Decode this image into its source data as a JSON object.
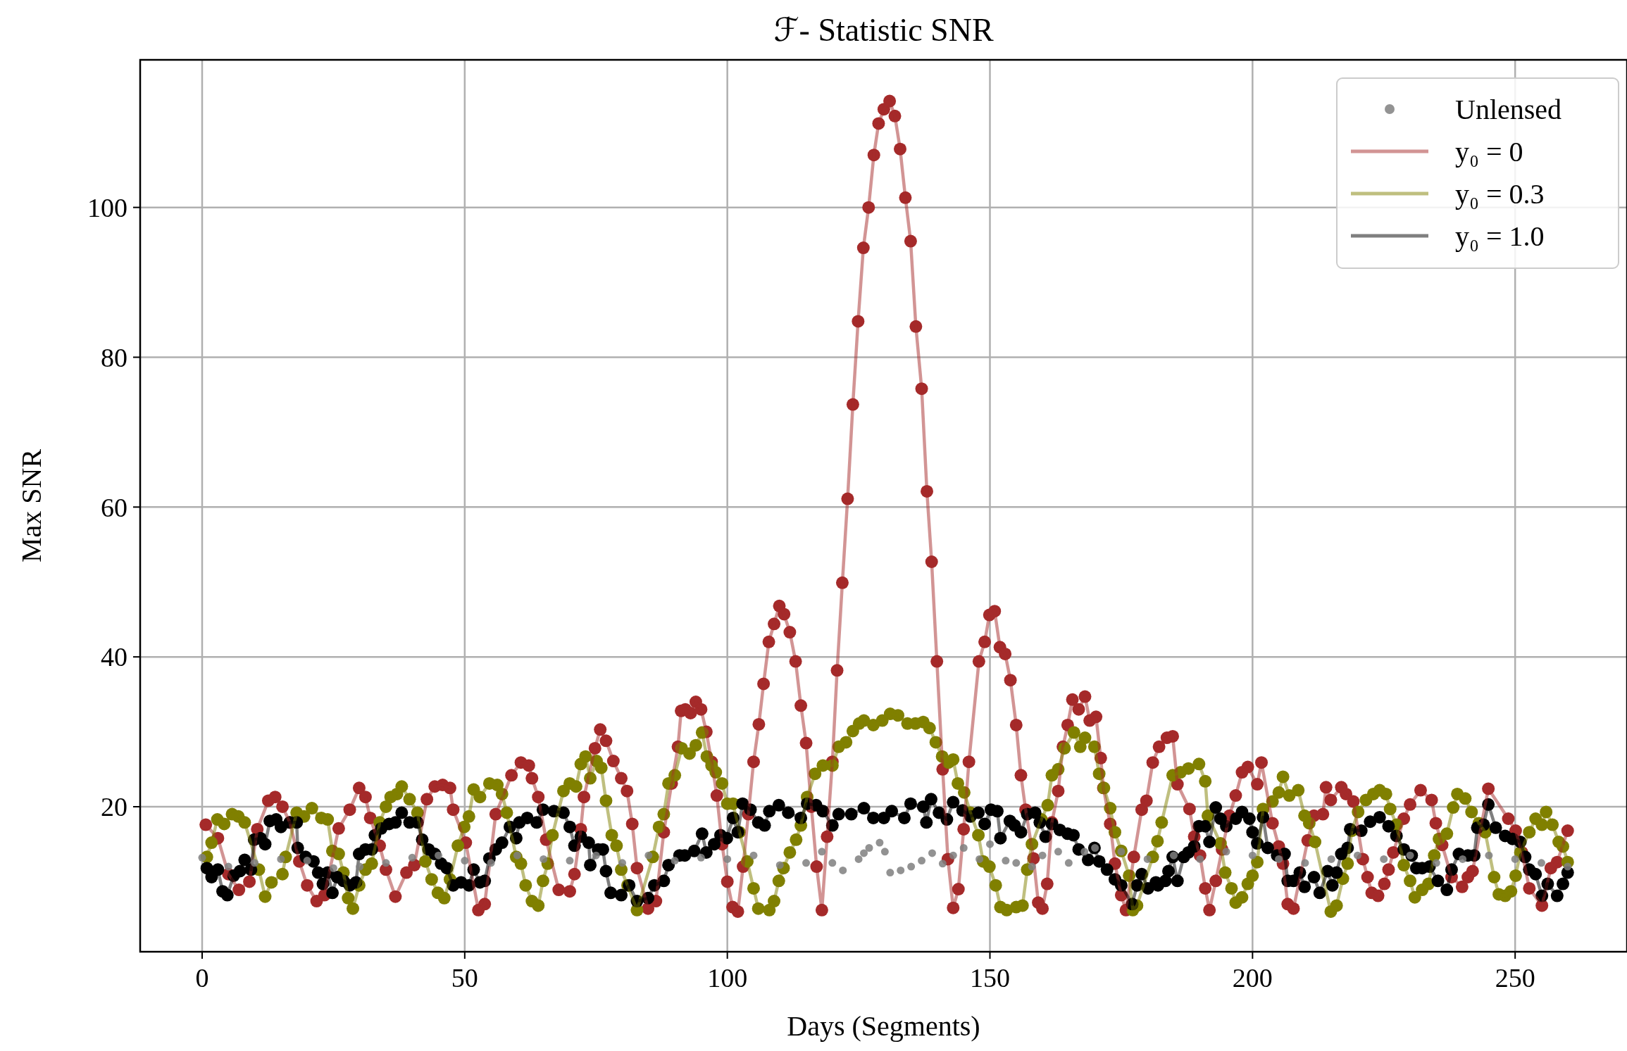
{
  "chart_data": {
    "type": "line",
    "title": "ℱ- Statistic SNR",
    "xlabel": "Days (Segments)",
    "ylabel": "Max SNR",
    "xlim": [
      -11.8,
      271.3
    ],
    "ylim": [
      0.64,
      119.7
    ],
    "xticks": [
      0,
      50,
      100,
      150,
      200,
      250
    ],
    "yticks": [
      20,
      40,
      60,
      80,
      100
    ],
    "grid": true,
    "legend": "top right",
    "marker": "circle",
    "series": [
      {
        "name": "Unlensed",
        "type": "scatter",
        "color": "#808080",
        "x": [
          0,
          5,
          10,
          15,
          20,
          25,
          30,
          35,
          40,
          45,
          50,
          55,
          60,
          65,
          70,
          75,
          80,
          85,
          90,
          95,
          100,
          105,
          110,
          115,
          118,
          120,
          122,
          125,
          126,
          127,
          129,
          130,
          131,
          133,
          135,
          137,
          139,
          141,
          143,
          145,
          148,
          150,
          153,
          155,
          158,
          160,
          163,
          165,
          168,
          170,
          175,
          180,
          185,
          190,
          195,
          200,
          205,
          210,
          215,
          220,
          225,
          230,
          235,
          240,
          245,
          250,
          255,
          260
        ],
        "values": [
          13.2,
          12,
          12.5,
          13,
          12.8,
          11.8,
          12,
          12.5,
          13.2,
          13.5,
          12.8,
          12.5,
          13.5,
          13,
          12.8,
          13.5,
          12.5,
          13.5,
          12.8,
          13.2,
          13,
          13.5,
          12.2,
          12.5,
          14,
          12.5,
          11.5,
          13,
          13.8,
          14.5,
          15.2,
          14,
          11.2,
          11.5,
          12,
          12.8,
          13.8,
          12.4,
          13.5,
          14.5,
          13,
          15,
          12.8,
          12.5,
          12,
          13.5,
          14,
          12.5,
          14,
          14.5,
          14,
          13,
          13.5,
          13,
          14,
          13.5,
          13,
          12.5,
          13,
          13.5,
          13,
          13.5,
          12.5,
          13,
          13.5,
          13,
          12.5,
          12
        ]
      },
      {
        "name": "y₀ = 0",
        "type": "line",
        "color": "#a52a2a",
        "x": [
          0.7,
          3,
          5,
          7,
          9,
          10.5,
          12.6,
          13.9,
          15.3,
          16.7,
          18.5,
          20,
          21.8,
          23.3,
          26,
          28.1,
          29.9,
          31.1,
          32,
          33.8,
          35,
          36.8,
          38.9,
          40.4,
          42.8,
          44.3,
          45.8,
          47.2,
          47.8,
          50.2,
          52.6,
          53.8,
          55.9,
          58.9,
          60.7,
          62.2,
          62.8,
          64,
          65.5,
          67.9,
          70,
          70.9,
          72.1,
          72.7,
          74.8,
          75.8,
          76.9,
          78.3,
          79.8,
          80.9,
          81.9,
          82.8,
          84.9,
          86.4,
          87.9,
          89.4,
          90.6,
          91.2,
          92,
          93,
          94,
          95,
          96,
          97,
          98,
          99,
          100,
          101,
          102,
          103,
          104,
          105,
          106,
          106.9,
          107.9,
          108.9,
          109.9,
          110.8,
          111.9,
          113,
          114,
          115,
          116,
          117,
          118,
          119,
          120,
          120.9,
          121.9,
          122.9,
          123.9,
          124.9,
          125.9,
          126.9,
          127.9,
          128.8,
          129.8,
          130.9,
          131.9,
          132.9,
          133.9,
          134.9,
          135.9,
          137,
          138,
          138.9,
          139.9,
          141,
          142,
          143,
          144,
          145,
          146,
          147.9,
          149,
          149.9,
          150.9,
          151.9,
          152.9,
          153.9,
          155,
          155.9,
          156.8,
          158.3,
          159.2,
          160,
          160.9,
          161.8,
          163,
          163.9,
          164.8,
          165.7,
          166.9,
          168.1,
          169,
          170.2,
          171.1,
          171.6,
          172.9,
          173.8,
          175,
          175.9,
          177.4,
          178.9,
          179.8,
          181,
          182.2,
          183.7,
          184.8,
          185.7,
          188,
          188.9,
          190,
          191,
          191.8,
          193,
          194.2,
          195.6,
          196.8,
          198,
          199.1,
          200.9,
          201.7,
          203.8,
          205,
          205.8,
          206.7,
          207.8,
          210.5,
          211.7,
          213.4,
          214,
          214.9,
          216.9,
          217.8,
          219.2,
          221,
          221.9,
          222.7,
          223.9,
          225.1,
          225.9,
          226.8,
          228.8,
          230,
          232,
          234.1,
          234.9,
          236.1,
          237.9,
          239.9,
          241,
          241.9,
          244.9,
          248.7,
          250.1,
          251.3,
          252.7,
          255.1,
          256.8,
          258,
          260
        ],
        "values": [
          17.6,
          15.8,
          11,
          8.9,
          10,
          17,
          20.8,
          21.3,
          20,
          17.9,
          12.7,
          9.5,
          7.4,
          8.2,
          17.1,
          19.6,
          22.5,
          21.3,
          18.5,
          14.8,
          11.6,
          8,
          11.2,
          12.2,
          21,
          22.7,
          22.9,
          22.5,
          19.6,
          15.2,
          6.2,
          7,
          19,
          24.2,
          25.9,
          25.5,
          23.8,
          21.3,
          15.6,
          8.9,
          8.7,
          11,
          17,
          21.3,
          27.8,
          30.3,
          28.8,
          26.1,
          23.8,
          22.1,
          17.7,
          11.8,
          6.4,
          7.4,
          16.6,
          23.1,
          28,
          32.8,
          33,
          32.5,
          34,
          33,
          30,
          26,
          21.5,
          15,
          10,
          6.6,
          6,
          12,
          19,
          26,
          31,
          36.4,
          42,
          44.4,
          46.8,
          45.7,
          43.3,
          39.4,
          33.5,
          28.5,
          20,
          12,
          6.2,
          16,
          26,
          38.2,
          49.9,
          61.1,
          73.7,
          84.8,
          94.6,
          100,
          107,
          111.2,
          113.1,
          114.2,
          112.2,
          107.8,
          101.3,
          95.5,
          84.1,
          75.8,
          62.1,
          52.7,
          39.4,
          25,
          13,
          6.5,
          9,
          17,
          26,
          39.4,
          42,
          45.6,
          46.1,
          41.3,
          40.4,
          36.9,
          30.9,
          24.2,
          19.6,
          13.1,
          7.2,
          6.4,
          9.7,
          17.9,
          22.1,
          28,
          30.9,
          34.3,
          33,
          34.7,
          31.5,
          32,
          26.5,
          22.5,
          17.7,
          12.4,
          8.2,
          6.2,
          13.3,
          19.6,
          20.8,
          25.9,
          28,
          29.2,
          29.4,
          23,
          19.7,
          16,
          13.5,
          9.1,
          6.2,
          10.1,
          14.3,
          18.8,
          21.5,
          24.6,
          25.3,
          23,
          25.9,
          17.8,
          14.7,
          12.4,
          7,
          6.4,
          15.5,
          18.8,
          19,
          22.6,
          20.9,
          22.6,
          21.7,
          20.7,
          13,
          10.6,
          8.5,
          8.1,
          9.7,
          11.6,
          13.9,
          18.4,
          20.3,
          22.2,
          20.9,
          17.8,
          14.9,
          10.6,
          9.3,
          10.6,
          11.4,
          22.4,
          18.4,
          16.8,
          13.9,
          9.1,
          6.8,
          11.8,
          12.6,
          16.8
        ]
      },
      {
        "name": "y₀ = 0.3",
        "type": "line",
        "color": "#808000",
        "x": [
          0.9,
          1.8,
          2.9,
          4.2,
          5.7,
          6.9,
          8.1,
          10.8,
          12,
          13.2,
          15.3,
          15.9,
          18,
          19.4,
          20.9,
          22.7,
          23.9,
          24.8,
          26,
          26.9,
          27.8,
          28.7,
          29.9,
          31.1,
          32.3,
          33.8,
          35,
          35.9,
          37.1,
          38,
          39.5,
          41,
          42.5,
          43.7,
          44.9,
          46.1,
          47.2,
          48.7,
          49.9,
          50.8,
          51.7,
          52.9,
          54.7,
          56.2,
          57.1,
          58,
          59.8,
          60.7,
          61.6,
          62.8,
          64,
          64.9,
          65.8,
          66.7,
          68.8,
          70,
          71.2,
          72.1,
          73,
          73.9,
          75.1,
          76,
          76.9,
          78,
          78.9,
          79.8,
          81,
          82.8,
          85.8,
          87,
          87.9,
          88.8,
          90,
          91.3,
          92.8,
          94,
          95.2,
          96.1,
          97,
          97.8,
          99,
          100,
          101.1,
          102.3,
          103.8,
          105,
          105.9,
          108,
          108.9,
          109.8,
          110.7,
          111.9,
          113.1,
          114,
          115.2,
          116.7,
          118.2,
          120,
          121.2,
          122.6,
          123.9,
          125.1,
          126,
          127.8,
          129.5,
          131,
          132.5,
          134.3,
          135.8,
          137.3,
          138.5,
          139.7,
          140.9,
          142.1,
          143,
          143.9,
          145.1,
          146.3,
          147.8,
          148.7,
          149.9,
          151.1,
          152,
          153.2,
          155,
          156.2,
          157.1,
          158,
          159.8,
          161,
          161.8,
          163,
          164.2,
          166,
          167.2,
          168.1,
          169.9,
          170.8,
          171.7,
          172.9,
          173.8,
          175,
          176.5,
          177.2,
          178,
          181,
          181.9,
          182.7,
          184.8,
          186.3,
          187.8,
          189.8,
          191,
          191.5,
          193.9,
          194.8,
          196,
          196.8,
          198,
          199.1,
          200,
          200.9,
          202,
          203.8,
          205,
          205.8,
          207,
          208.7,
          209.9,
          210.8,
          211.9,
          214.9,
          216,
          217.2,
          218.1,
          218.9,
          220.1,
          221.6,
          223,
          224.2,
          225.4,
          226.2,
          227.4,
          228.8,
          230,
          230.9,
          232.3,
          233.5,
          234.6,
          235.5,
          237,
          238.2,
          239,
          240.5,
          241.7,
          243.1,
          244.3,
          246,
          246.9,
          248.1,
          249.2,
          250.1,
          251,
          252.7,
          253.9,
          255.1,
          255.9,
          257.1,
          258.3,
          259.1,
          260
        ],
        "values": [
          13.3,
          15.2,
          18.3,
          17.7,
          19,
          18.7,
          17.9,
          11.6,
          8,
          9.9,
          11,
          13.3,
          19.2,
          18.7,
          19.8,
          18.5,
          18.3,
          14.1,
          13.7,
          11.2,
          7.8,
          6.4,
          9.5,
          11.6,
          12.4,
          17.9,
          20,
          21.3,
          21.7,
          22.7,
          21,
          19.2,
          12.7,
          10.3,
          8.5,
          7.8,
          10.3,
          14.8,
          17.3,
          18.7,
          22.3,
          21.3,
          23.1,
          22.9,
          21.7,
          19.2,
          13.3,
          12.4,
          9.5,
          7.4,
          6.8,
          10.1,
          12.4,
          16.2,
          22.1,
          23.1,
          22.7,
          25.7,
          26.7,
          23.8,
          26.1,
          25.2,
          20.8,
          16.2,
          14.8,
          11.6,
          9.5,
          6.2,
          13.3,
          17.3,
          19,
          23.1,
          24.2,
          27.8,
          27.1,
          28.2,
          29.9,
          26.7,
          25.5,
          24.6,
          23.1,
          20.4,
          20.4,
          16.6,
          12.7,
          9.1,
          6.4,
          6.2,
          7.4,
          10.1,
          11.8,
          13.9,
          15.6,
          17.5,
          21.3,
          24.4,
          25.5,
          25.5,
          28,
          28.6,
          30.1,
          31.1,
          31.5,
          30.9,
          31.5,
          32.4,
          32.2,
          31.1,
          31.1,
          31.3,
          30.5,
          28.6,
          26.7,
          25.9,
          26.3,
          23.1,
          21.9,
          19.2,
          16.2,
          12.7,
          12,
          9.5,
          6.6,
          6.2,
          6.6,
          6.8,
          11.6,
          15,
          18.3,
          20.2,
          24.2,
          25,
          27.8,
          29.9,
          28,
          29.2,
          28,
          24.4,
          22.5,
          19.8,
          16.6,
          14.1,
          10.8,
          6.2,
          6.8,
          13.3,
          15.4,
          17.9,
          24.2,
          24.6,
          25.1,
          25.7,
          23.4,
          18.8,
          15.1,
          11.2,
          9.1,
          7.2,
          7.9,
          9.7,
          10.8,
          12.6,
          19.7,
          20.7,
          21.9,
          24,
          21.5,
          22.2,
          18.8,
          17.8,
          15.3,
          6,
          6.8,
          10.4,
          12.4,
          16.8,
          19.3,
          20.9,
          21.7,
          22.2,
          21.7,
          19.7,
          17.6,
          12.2,
          10.1,
          7.9,
          8.9,
          9.7,
          13.5,
          15.7,
          16.4,
          19.9,
          21.7,
          21.1,
          19.3,
          17.8,
          16.6,
          10.6,
          8.3,
          8.1,
          8.7,
          10.8,
          13.9,
          16.6,
          18.4,
          17.6,
          19.3,
          17.6,
          15.3,
          14.7,
          12.6
        ]
      },
      {
        "name": "y₀ = 1.0",
        "type": "line",
        "color": "#000000",
        "x": [
          0.9,
          1.8,
          3,
          3.9,
          4.8,
          6,
          7.2,
          8.1,
          9.3,
          9.9,
          11.1,
          12,
          12.9,
          14.1,
          15,
          16.7,
          18,
          18.2,
          19.7,
          21.2,
          22.1,
          23,
          23.9,
          24.8,
          25.7,
          26.9,
          28.1,
          29.3,
          29.9,
          31.1,
          32.3,
          32.9,
          34.1,
          35.6,
          36.8,
          38,
          39.5,
          41,
          41.9,
          43.1,
          44.3,
          45.5,
          46.6,
          47.8,
          49.3,
          50.8,
          51.7,
          52.9,
          53.8,
          54.7,
          55.9,
          57.1,
          58.6,
          59.8,
          60.4,
          61.9,
          63.7,
          64.9,
          67,
          68.8,
          70,
          70.9,
          72.1,
          73.6,
          73.9,
          75.4,
          76.3,
          76.9,
          77.8,
          79.8,
          81.3,
          82.8,
          84.9,
          86.1,
          87.9,
          88.8,
          90.9,
          91.9,
          93.7,
          95.2,
          96,
          97.5,
          98.7,
          99.9,
          101.1,
          102,
          102.9,
          104.4,
          105.9,
          107.1,
          108,
          109.8,
          111.6,
          114,
          115.2,
          116.9,
          118.2,
          120,
          121.2,
          123.6,
          126,
          127.8,
          129.8,
          131.3,
          133.7,
          134.9,
          137.3,
          137.9,
          138.8,
          140.3,
          141.8,
          143,
          144.8,
          146.3,
          147.8,
          149,
          150.2,
          151.4,
          152,
          153.8,
          154.7,
          155.9,
          157.1,
          158.6,
          159.5,
          160.6,
          161.8,
          163.3,
          164.8,
          165.9,
          166.9,
          168.7,
          169.9,
          170.8,
          172.3,
          173.8,
          175,
          177.1,
          178,
          178.9,
          180.1,
          181.6,
          182,
          183.4,
          184,
          184.8,
          185.7,
          186.9,
          187.8,
          188.9,
          189.8,
          191,
          191.8,
          193,
          193.9,
          195,
          196.8,
          198,
          199.4,
          200,
          200.9,
          202,
          202.9,
          204.7,
          206.1,
          206.7,
          207.8,
          209,
          209.9,
          211.7,
          212.8,
          214.3,
          215.2,
          216,
          216.9,
          218.1,
          218.6,
          220.7,
          222.4,
          224.2,
          225.9,
          227.4,
          228.8,
          230.3,
          231.2,
          232.3,
          233.7,
          235.3,
          237,
          237.9,
          239.3,
          241,
          242.2,
          242.8,
          244,
          244.9,
          246.3,
          248.1,
          249.5,
          251,
          251.9,
          252.7,
          253.9,
          255.1,
          256.2,
          258,
          259.1,
          260
        ],
        "values": [
          11.8,
          10.6,
          11.6,
          8.7,
          8.2,
          10.8,
          11.4,
          12.9,
          11.6,
          15.6,
          15.8,
          15,
          18.1,
          18.3,
          17.3,
          17.9,
          17.9,
          14.5,
          13.3,
          12.7,
          11.2,
          9.7,
          11.2,
          8.5,
          10.6,
          10.1,
          9.5,
          9.9,
          13.7,
          14.3,
          14.3,
          16.2,
          17.1,
          17.7,
          17.9,
          19.2,
          17.9,
          17.9,
          15.6,
          14.3,
          13.7,
          12.4,
          11.8,
          9.5,
          9.9,
          9.5,
          11.6,
          9.9,
          10.1,
          13.1,
          14.3,
          15.2,
          17.3,
          15.8,
          17.9,
          18.5,
          17.9,
          19.6,
          19.4,
          19.2,
          17.3,
          14.8,
          16,
          15.2,
          12.2,
          14.3,
          14.3,
          11.4,
          8.5,
          8.2,
          9.5,
          7.4,
          7.8,
          9.5,
          10.1,
          12.2,
          13.5,
          13.5,
          14.1,
          16.4,
          13.9,
          15,
          16.2,
          15.8,
          18.5,
          16.6,
          20.4,
          19.6,
          17.9,
          17.5,
          19.4,
          20.2,
          19.2,
          18.5,
          20.4,
          20.2,
          19.4,
          17.5,
          19,
          19,
          19.8,
          18.5,
          18.5,
          19.4,
          18.5,
          20.4,
          20,
          17.9,
          21,
          19.2,
          18.3,
          20.6,
          19.5,
          18.7,
          19.2,
          17.7,
          19.6,
          19.4,
          15.8,
          18.1,
          17.5,
          16.6,
          19,
          19.2,
          17.9,
          16,
          17.7,
          16.9,
          16.4,
          16.2,
          14.3,
          12.9,
          14.5,
          12.7,
          11.6,
          10.3,
          9.5,
          7,
          9.5,
          11,
          9.1,
          9.9,
          9.5,
          10.1,
          11.4,
          13.3,
          10.1,
          13.3,
          13.9,
          14.7,
          17.4,
          17.4,
          15.3,
          19.9,
          18.4,
          17.4,
          18.4,
          19.3,
          18.4,
          16.6,
          15.1,
          18.6,
          14.5,
          13.5,
          13.7,
          10.1,
          10.1,
          11.2,
          9.3,
          10.6,
          8.5,
          11.4,
          9.5,
          11.2,
          13.7,
          14.5,
          17,
          16.8,
          18,
          18.6,
          17.4,
          16.1,
          14.3,
          13.5,
          11.8,
          11.8,
          12,
          10.1,
          8.9,
          11.6,
          13.7,
          13.5,
          13.5,
          17.2,
          17.6,
          20.3,
          17.2,
          16.1,
          15.7,
          15.3,
          13.3,
          11.6,
          11,
          8.1,
          9.7,
          8.1,
          9.7,
          11.2
        ]
      }
    ]
  }
}
